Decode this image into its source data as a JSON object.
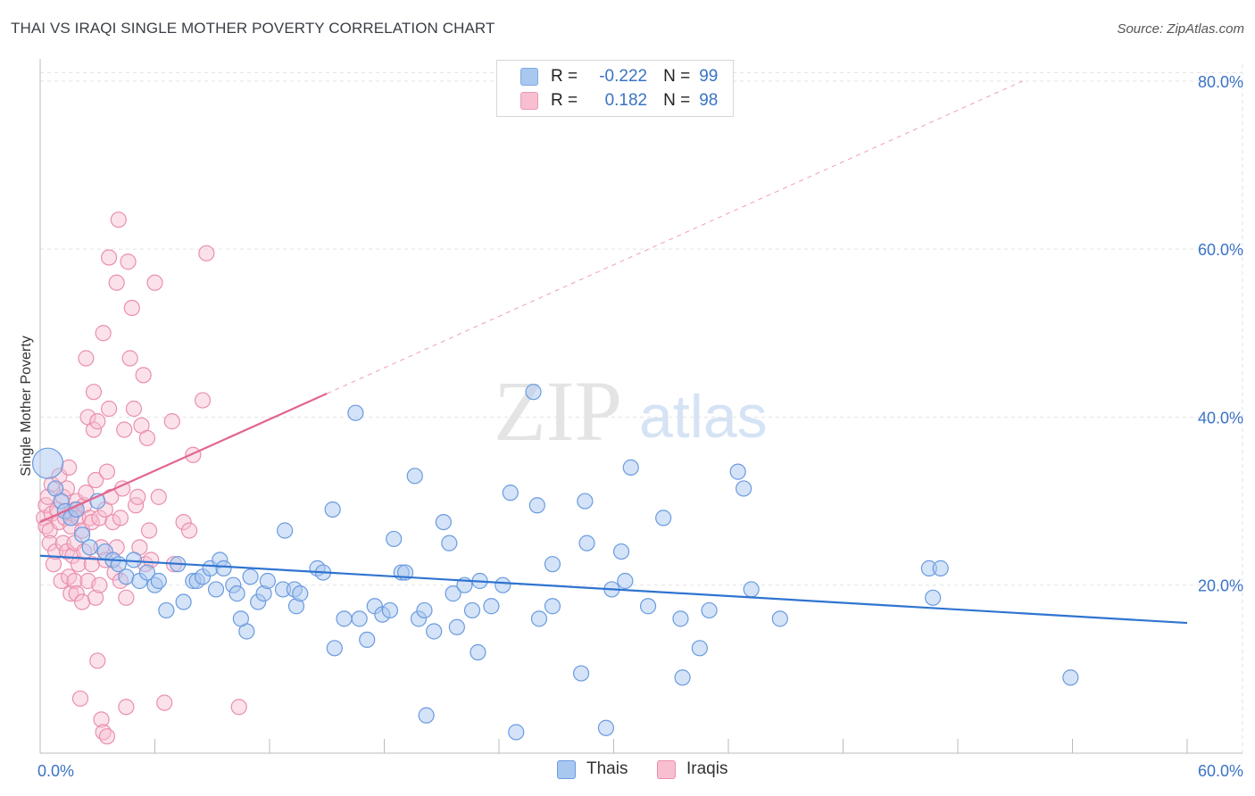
{
  "header": {
    "title": "THAI VS IRAQI SINGLE MOTHER POVERTY CORRELATION CHART",
    "source": "Source: ZipAtlas.com"
  },
  "watermark": {
    "zip": "ZIP",
    "atlas": "atlas"
  },
  "legend": {
    "rows": [
      {
        "r_label": "R =",
        "r_value": "-0.222",
        "n_label": "N =",
        "n_value": "99",
        "color": "#a9c8f0",
        "border": "#7aa8e6"
      },
      {
        "r_label": "R =",
        "r_value": "0.182",
        "n_label": "N =",
        "n_value": "98",
        "color": "#f7bfd0",
        "border": "#ec9ab4"
      }
    ]
  },
  "bottom_legend": {
    "thais": "Thais",
    "iraqis": "Iraqis"
  },
  "colors": {
    "thais_fill": "#a9c8f0",
    "thais_stroke": "#6a9be0",
    "thais_line": "#2f74d0",
    "iraqis_fill": "#f7bfd0",
    "iraqis_stroke": "#ea8fae",
    "iraqis_line": "#e2668f"
  },
  "chart_data": {
    "type": "scatter",
    "title": "THAI VS IRAQI SINGLE MOTHER POVERTY CORRELATION CHART",
    "xlabel": "",
    "ylabel": "Single Mother Poverty",
    "xlim": [
      0,
      60
    ],
    "ylim": [
      0,
      82
    ],
    "x_tick_labels": [
      "0.0%",
      "60.0%"
    ],
    "y_tick_labels": [
      "20.0%",
      "40.0%",
      "60.0%",
      "80.0%"
    ],
    "y_ticks": [
      20,
      40,
      60,
      80
    ],
    "grid": true,
    "legend_placement": "top-center",
    "series": [
      {
        "name": "Thais",
        "r": -0.222,
        "n": 99,
        "trend": {
          "x": [
            0,
            60
          ],
          "y": [
            23.5,
            15.5
          ]
        },
        "points": [
          [
            0.4,
            34.5
          ],
          [
            0.8,
            31.5
          ],
          [
            1.1,
            30.0
          ],
          [
            1.3,
            28.8
          ],
          [
            1.6,
            28.0
          ],
          [
            1.9,
            29.0
          ],
          [
            2.2,
            26.0
          ],
          [
            2.6,
            24.5
          ],
          [
            3.0,
            30.0
          ],
          [
            3.4,
            24.0
          ],
          [
            3.8,
            23.0
          ],
          [
            4.1,
            22.5
          ],
          [
            4.5,
            21.0
          ],
          [
            4.9,
            23.0
          ],
          [
            5.2,
            20.5
          ],
          [
            5.6,
            21.5
          ],
          [
            6.0,
            20.0
          ],
          [
            6.2,
            20.5
          ],
          [
            6.6,
            17.0
          ],
          [
            7.2,
            22.5
          ],
          [
            7.5,
            18.0
          ],
          [
            8.0,
            20.5
          ],
          [
            8.2,
            20.5
          ],
          [
            8.5,
            21.0
          ],
          [
            8.9,
            22.0
          ],
          [
            9.2,
            19.5
          ],
          [
            9.4,
            23.0
          ],
          [
            9.6,
            22.0
          ],
          [
            10.1,
            20.0
          ],
          [
            10.3,
            19.0
          ],
          [
            10.8,
            14.5
          ],
          [
            11.0,
            21.0
          ],
          [
            11.4,
            18.0
          ],
          [
            11.7,
            19.0
          ],
          [
            11.9,
            20.5
          ],
          [
            12.8,
            26.5
          ],
          [
            12.7,
            19.5
          ],
          [
            13.3,
            19.5
          ],
          [
            13.4,
            17.5
          ],
          [
            13.6,
            19.0
          ],
          [
            14.5,
            22.0
          ],
          [
            14.8,
            21.5
          ],
          [
            15.3,
            29.0
          ],
          [
            15.4,
            12.5
          ],
          [
            15.9,
            16.0
          ],
          [
            16.7,
            16.0
          ],
          [
            17.1,
            13.5
          ],
          [
            17.5,
            17.5
          ],
          [
            17.9,
            16.5
          ],
          [
            18.3,
            17.0
          ],
          [
            18.5,
            25.5
          ],
          [
            18.9,
            21.5
          ],
          [
            19.1,
            21.5
          ],
          [
            19.6,
            33.0
          ],
          [
            19.8,
            16.0
          ],
          [
            20.1,
            17.0
          ],
          [
            20.6,
            14.5
          ],
          [
            21.1,
            27.5
          ],
          [
            21.4,
            25.0
          ],
          [
            21.6,
            19.0
          ],
          [
            21.8,
            15.0
          ],
          [
            22.2,
            20.0
          ],
          [
            22.6,
            17.0
          ],
          [
            22.9,
            12.0
          ],
          [
            23.0,
            20.5
          ],
          [
            23.6,
            17.5
          ],
          [
            24.2,
            20.0
          ],
          [
            24.6,
            31.0
          ],
          [
            24.9,
            2.5
          ],
          [
            26.0,
            29.5
          ],
          [
            26.1,
            16.0
          ],
          [
            26.8,
            17.5
          ],
          [
            26.8,
            22.5
          ],
          [
            28.3,
            9.5
          ],
          [
            28.5,
            30.0
          ],
          [
            28.6,
            25.0
          ],
          [
            29.6,
            3.0
          ],
          [
            29.9,
            19.5
          ],
          [
            30.4,
            24.0
          ],
          [
            30.6,
            20.5
          ],
          [
            30.9,
            34.0
          ],
          [
            31.8,
            17.5
          ],
          [
            32.6,
            28.0
          ],
          [
            33.5,
            16.0
          ],
          [
            33.6,
            9.0
          ],
          [
            34.5,
            12.5
          ],
          [
            35.0,
            17.0
          ],
          [
            36.5,
            33.5
          ],
          [
            36.8,
            31.5
          ],
          [
            37.2,
            19.5
          ],
          [
            38.7,
            16.0
          ],
          [
            46.5,
            22.0
          ],
          [
            46.7,
            18.5
          ],
          [
            47.1,
            22.0
          ],
          [
            53.9,
            9.0
          ],
          [
            16.5,
            40.5
          ],
          [
            25.8,
            43.0
          ],
          [
            20.2,
            4.5
          ],
          [
            10.5,
            16.0
          ]
        ]
      },
      {
        "name": "Iraqis",
        "r": 0.182,
        "n": 98,
        "trend": {
          "x": [
            0,
            15
          ],
          "y": [
            27.5,
            42.8
          ]
        },
        "trend_extension": {
          "x": [
            15,
            51.4
          ],
          "y": [
            42.8,
            80.0
          ]
        },
        "points": [
          [
            0.2,
            28.0
          ],
          [
            0.3,
            27.0
          ],
          [
            0.3,
            29.5
          ],
          [
            0.4,
            30.5
          ],
          [
            0.5,
            26.5
          ],
          [
            0.5,
            25.0
          ],
          [
            0.6,
            32.0
          ],
          [
            0.6,
            28.5
          ],
          [
            0.7,
            22.5
          ],
          [
            0.8,
            24.0
          ],
          [
            0.9,
            29.0
          ],
          [
            1.0,
            33.0
          ],
          [
            1.0,
            27.5
          ],
          [
            1.1,
            20.5
          ],
          [
            1.2,
            30.5
          ],
          [
            1.2,
            25.0
          ],
          [
            1.3,
            28.0
          ],
          [
            1.4,
            24.0
          ],
          [
            1.4,
            31.5
          ],
          [
            1.5,
            21.0
          ],
          [
            1.5,
            34.0
          ],
          [
            1.6,
            19.0
          ],
          [
            1.6,
            27.0
          ],
          [
            1.7,
            28.5
          ],
          [
            1.7,
            23.5
          ],
          [
            1.8,
            25.0
          ],
          [
            1.8,
            29.0
          ],
          [
            1.8,
            20.5
          ],
          [
            1.9,
            30.0
          ],
          [
            1.9,
            19.0
          ],
          [
            2.0,
            28.0
          ],
          [
            2.0,
            22.5
          ],
          [
            2.1,
            6.5
          ],
          [
            2.2,
            18.0
          ],
          [
            2.2,
            26.5
          ],
          [
            2.3,
            29.5
          ],
          [
            2.3,
            24.0
          ],
          [
            2.4,
            47.0
          ],
          [
            2.4,
            31.0
          ],
          [
            2.5,
            20.5
          ],
          [
            2.5,
            40.0
          ],
          [
            2.6,
            28.0
          ],
          [
            2.7,
            22.5
          ],
          [
            2.7,
            27.5
          ],
          [
            2.8,
            43.0
          ],
          [
            2.8,
            38.5
          ],
          [
            2.9,
            32.5
          ],
          [
            2.9,
            18.5
          ],
          [
            3.0,
            39.5
          ],
          [
            3.0,
            11.0
          ],
          [
            3.1,
            28.0
          ],
          [
            3.1,
            20.0
          ],
          [
            3.2,
            24.5
          ],
          [
            3.2,
            4.0
          ],
          [
            3.3,
            2.5
          ],
          [
            3.3,
            50.0
          ],
          [
            3.4,
            29.0
          ],
          [
            3.4,
            23.0
          ],
          [
            3.5,
            2.0
          ],
          [
            3.5,
            33.5
          ],
          [
            3.6,
            59.0
          ],
          [
            3.6,
            41.0
          ],
          [
            3.7,
            30.5
          ],
          [
            3.8,
            27.5
          ],
          [
            3.9,
            21.5
          ],
          [
            4.0,
            24.5
          ],
          [
            4.0,
            56.0
          ],
          [
            4.1,
            63.5
          ],
          [
            4.2,
            28.0
          ],
          [
            4.2,
            20.5
          ],
          [
            4.3,
            31.5
          ],
          [
            4.4,
            38.5
          ],
          [
            4.5,
            5.5
          ],
          [
            4.5,
            18.5
          ],
          [
            4.6,
            58.5
          ],
          [
            4.7,
            47.0
          ],
          [
            4.8,
            53.0
          ],
          [
            4.9,
            41.0
          ],
          [
            5.0,
            29.5
          ],
          [
            5.1,
            30.5
          ],
          [
            5.2,
            24.5
          ],
          [
            5.3,
            39.0
          ],
          [
            5.4,
            45.0
          ],
          [
            5.5,
            22.5
          ],
          [
            5.6,
            37.5
          ],
          [
            5.7,
            26.5
          ],
          [
            5.8,
            23.0
          ],
          [
            6.0,
            56.0
          ],
          [
            6.5,
            6.0
          ],
          [
            6.9,
            39.5
          ],
          [
            7.0,
            22.5
          ],
          [
            7.5,
            27.5
          ],
          [
            7.8,
            26.5
          ],
          [
            8.0,
            35.5
          ],
          [
            8.5,
            42.0
          ],
          [
            8.7,
            59.5
          ],
          [
            10.4,
            5.5
          ],
          [
            6.2,
            30.5
          ]
        ]
      }
    ]
  }
}
